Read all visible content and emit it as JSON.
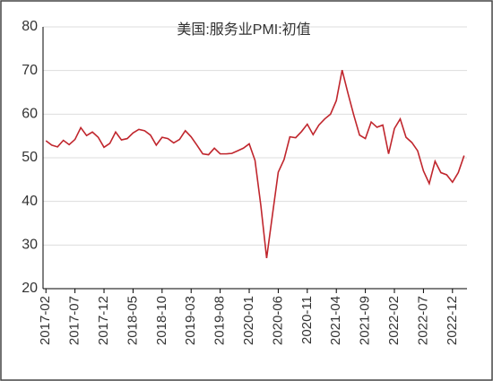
{
  "chart_data": {
    "type": "line",
    "title": "美国:服务业PMI:初值",
    "categories": [
      "2017-02",
      null,
      null,
      null,
      null,
      "2017-07",
      null,
      null,
      null,
      null,
      "2017-12",
      null,
      null,
      null,
      null,
      "2018-05",
      null,
      null,
      null,
      null,
      "2018-10",
      null,
      null,
      null,
      null,
      "2019-03",
      null,
      null,
      null,
      null,
      "2019-08",
      null,
      null,
      null,
      null,
      "2020-01",
      null,
      null,
      null,
      null,
      "2020-06",
      null,
      null,
      null,
      null,
      "2020-11",
      null,
      null,
      null,
      null,
      "2021-04",
      null,
      null,
      null,
      null,
      "2021-09",
      null,
      null,
      null,
      null,
      "2022-02",
      null,
      null,
      null,
      null,
      "2022-07",
      null,
      null,
      null,
      null,
      "2022-12",
      null,
      null
    ],
    "series": [
      {
        "name": "美国:服务业PMI:初值",
        "color": "#c0262d",
        "values": [
          53.9,
          52.9,
          52.5,
          54.0,
          53.0,
          54.2,
          56.9,
          55.1,
          55.9,
          54.7,
          52.4,
          53.3,
          55.9,
          54.1,
          54.4,
          55.7,
          56.5,
          56.2,
          55.2,
          52.9,
          54.7,
          54.4,
          53.4,
          54.2,
          56.2,
          54.8,
          52.9,
          50.9,
          50.7,
          52.2,
          50.9,
          50.9,
          51.0,
          51.6,
          52.2,
          53.2,
          49.4,
          39.1,
          27.0,
          36.9,
          46.7,
          49.6,
          54.8,
          54.6,
          56.0,
          57.7,
          55.3,
          57.5,
          58.9,
          60.0,
          63.1,
          70.1,
          64.8,
          59.8,
          55.2,
          54.4,
          58.2,
          57.0,
          57.5,
          50.9,
          56.7,
          58.9,
          54.7,
          53.5,
          51.6,
          47.0,
          44.1,
          49.2,
          46.6,
          46.1,
          44.4,
          46.6,
          50.5
        ]
      }
    ],
    "ylim": [
      20,
      80
    ],
    "yticks": [
      20,
      30,
      40,
      50,
      60,
      70,
      80
    ],
    "grid": true
  }
}
